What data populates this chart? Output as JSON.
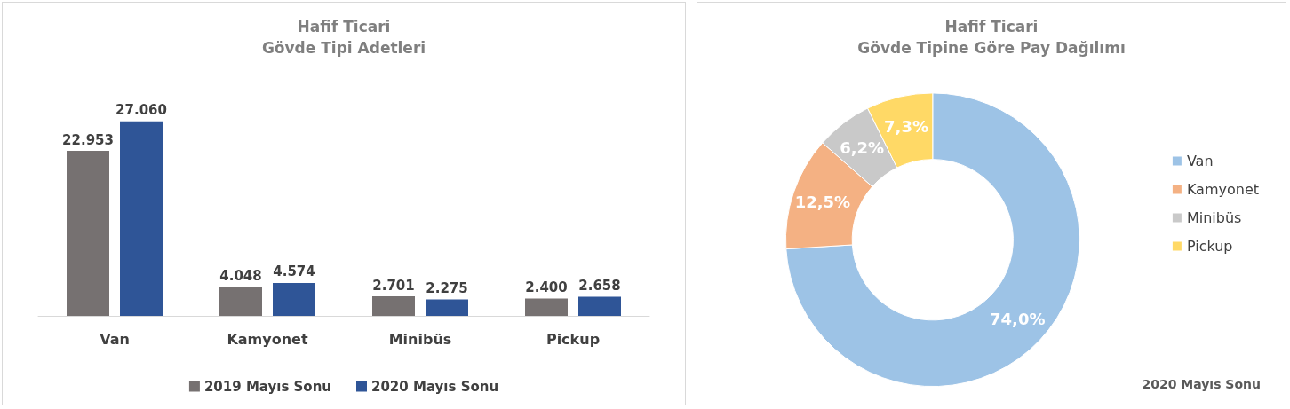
{
  "chart_data": [
    {
      "type": "bar",
      "title": "Hafif Ticari\nGövde Tipi Adetleri",
      "categories": [
        "Van",
        "Kamyonet",
        "Minibüs",
        "Pickup"
      ],
      "series": [
        {
          "name": "2019 Mayıs Sonu",
          "color": "#767171",
          "values": [
            22953,
            4048,
            2701,
            2400
          ],
          "value_labels": [
            "22.953",
            "4.048",
            "2.701",
            "2.400"
          ]
        },
        {
          "name": "2020 Mayıs Sonu",
          "color": "#2f5597",
          "values": [
            27060,
            4574,
            2275,
            2658
          ],
          "value_labels": [
            "27.060",
            "4.574",
            "2.275",
            "2.658"
          ]
        }
      ],
      "legend": "bottom",
      "grid": false
    },
    {
      "type": "donut",
      "title": "Hafif Ticari\nGövde Tipine Göre Pay Dağılımı",
      "categories": [
        "Van",
        "Kamyonet",
        "Minibüs",
        "Pickup"
      ],
      "values": [
        74.0,
        12.5,
        6.2,
        7.3
      ],
      "value_labels": [
        "74,0%",
        "12,5%",
        "6,2%",
        "7,3%"
      ],
      "colors": [
        "#9dc3e6",
        "#f4b183",
        "#c9c9c9",
        "#ffd966"
      ],
      "legend": "right",
      "annotations": [
        "2020 Mayıs Sonu"
      ]
    }
  ]
}
